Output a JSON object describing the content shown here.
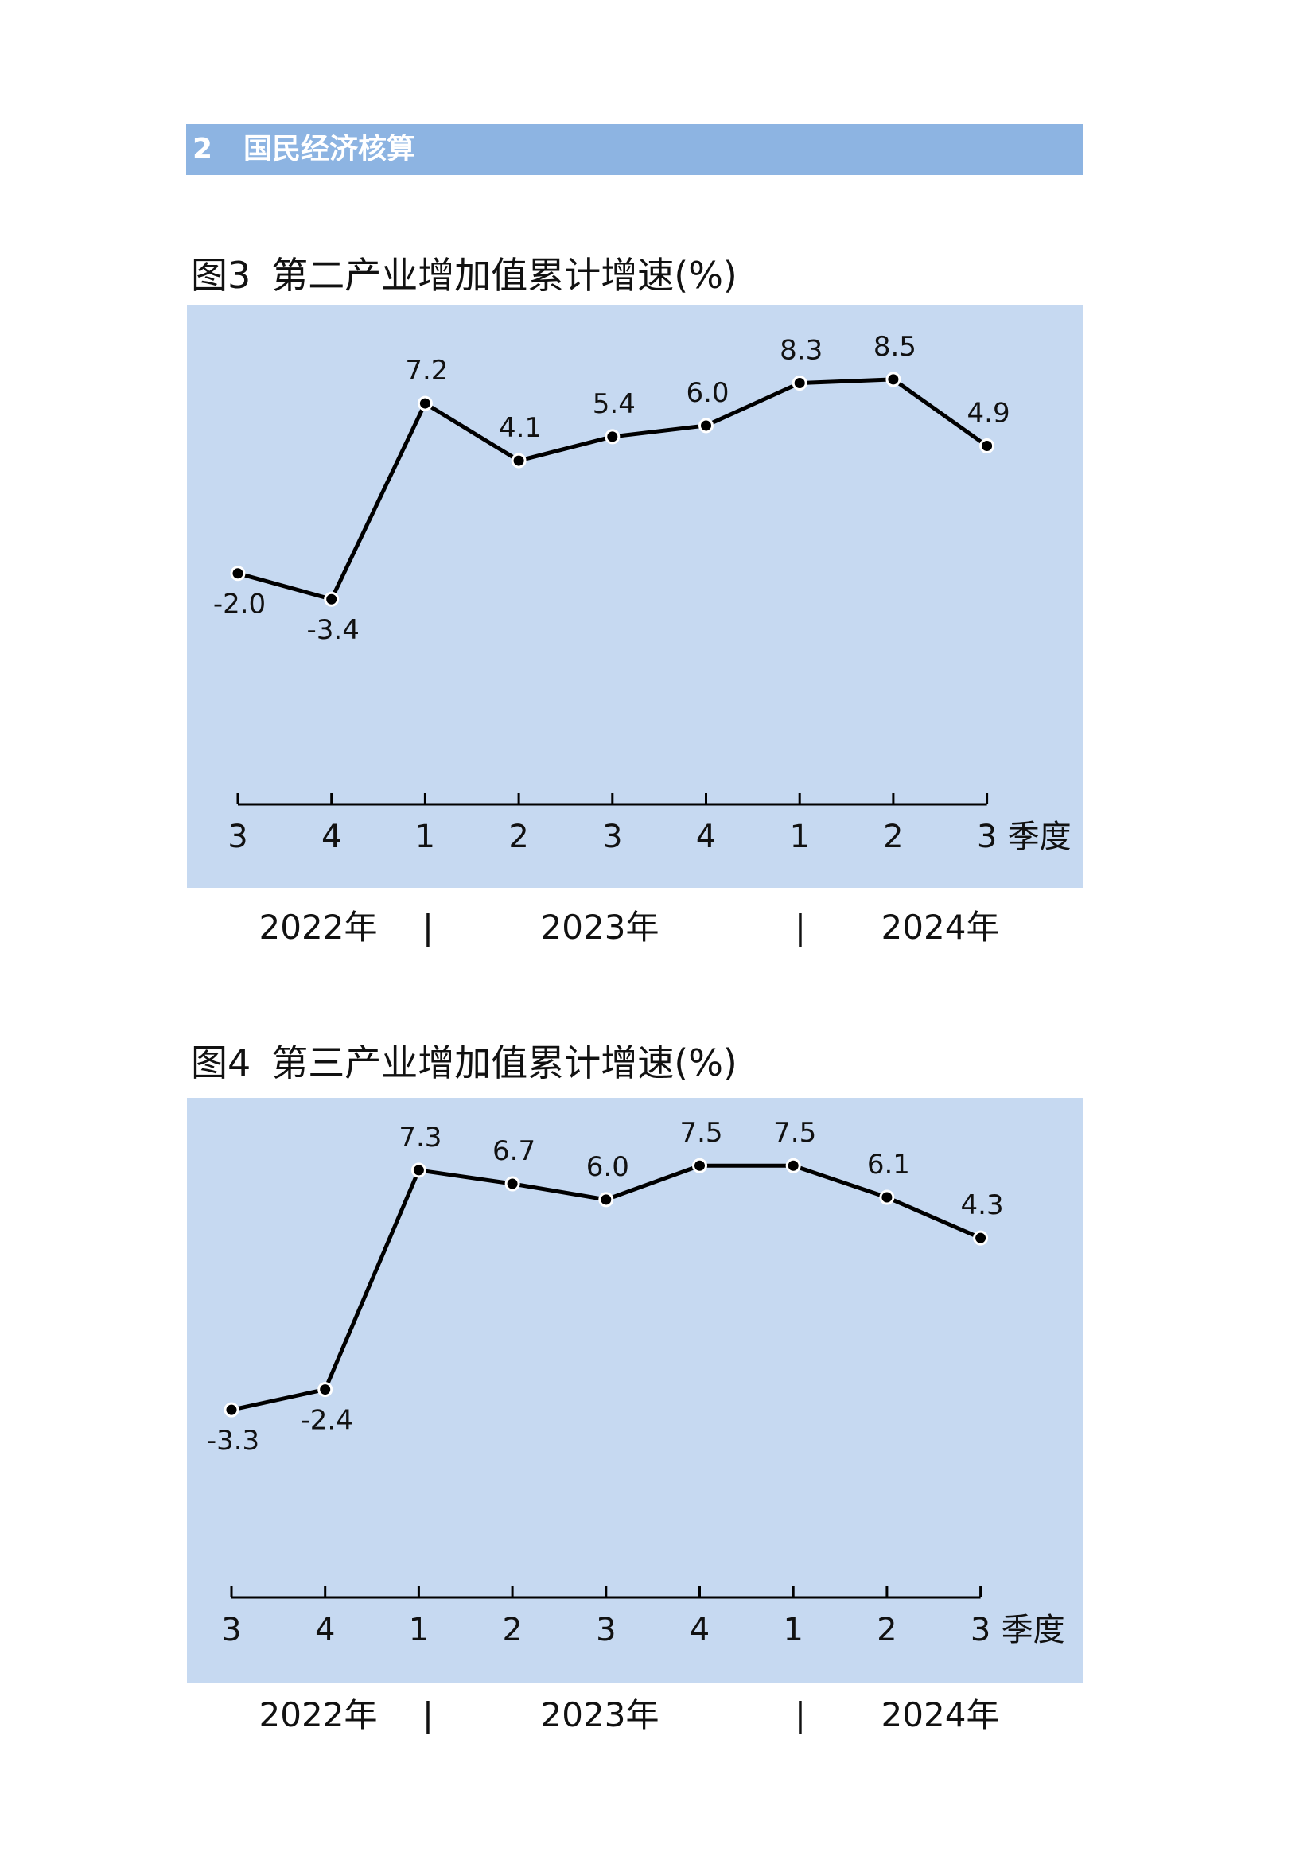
{
  "section": {
    "number": "2",
    "title": "国民经济核算"
  },
  "figures": [
    {
      "label": "图3",
      "title": "第二产业增加值累计增速(%)"
    },
    {
      "label": "图4",
      "title": "第三产业增加值累计增速(%)"
    }
  ],
  "year_labels": [
    "2022年",
    "2023年",
    "2024年"
  ],
  "year_separator": "|",
  "colors": {
    "header": "#8db4e2",
    "panel": "#c6d9f1",
    "line": "#000000"
  },
  "chart_data": [
    {
      "type": "line",
      "title": "第二产业增加值累计增速(%)",
      "x": [
        "3",
        "4",
        "1",
        "2",
        "3",
        "4",
        "1",
        "2",
        "3"
      ],
      "x_unit": "季度",
      "values": [
        -2.0,
        -3.4,
        7.2,
        4.1,
        5.4,
        6.0,
        8.3,
        8.5,
        4.9
      ],
      "labels": [
        "-2.0",
        "-3.4",
        "7.2",
        "4.1",
        "5.4",
        "6.0",
        "8.3",
        "8.5",
        "4.9"
      ],
      "label_position": [
        "below",
        "below",
        "above",
        "above",
        "above",
        "above",
        "above",
        "above",
        "above"
      ],
      "ylim": [
        -14.5,
        12.5
      ],
      "grid": false,
      "legend": "none"
    },
    {
      "type": "line",
      "title": "第三产业增加值累计增速(%)",
      "x": [
        "3",
        "4",
        "1",
        "2",
        "3",
        "4",
        "1",
        "2",
        "3"
      ],
      "x_unit": "季度",
      "values": [
        -3.3,
        -2.4,
        7.3,
        6.7,
        6.0,
        7.5,
        7.5,
        6.1,
        4.3
      ],
      "labels": [
        "-3.3",
        "-2.4",
        "7.3",
        "6.7",
        "6.0",
        "7.5",
        "7.5",
        "6.1",
        "4.3"
      ],
      "label_position": [
        "below",
        "below",
        "above",
        "above",
        "above",
        "above",
        "above",
        "above",
        "above"
      ],
      "ylim": [
        -11.6,
        10.5
      ],
      "grid": false,
      "legend": "none"
    }
  ]
}
